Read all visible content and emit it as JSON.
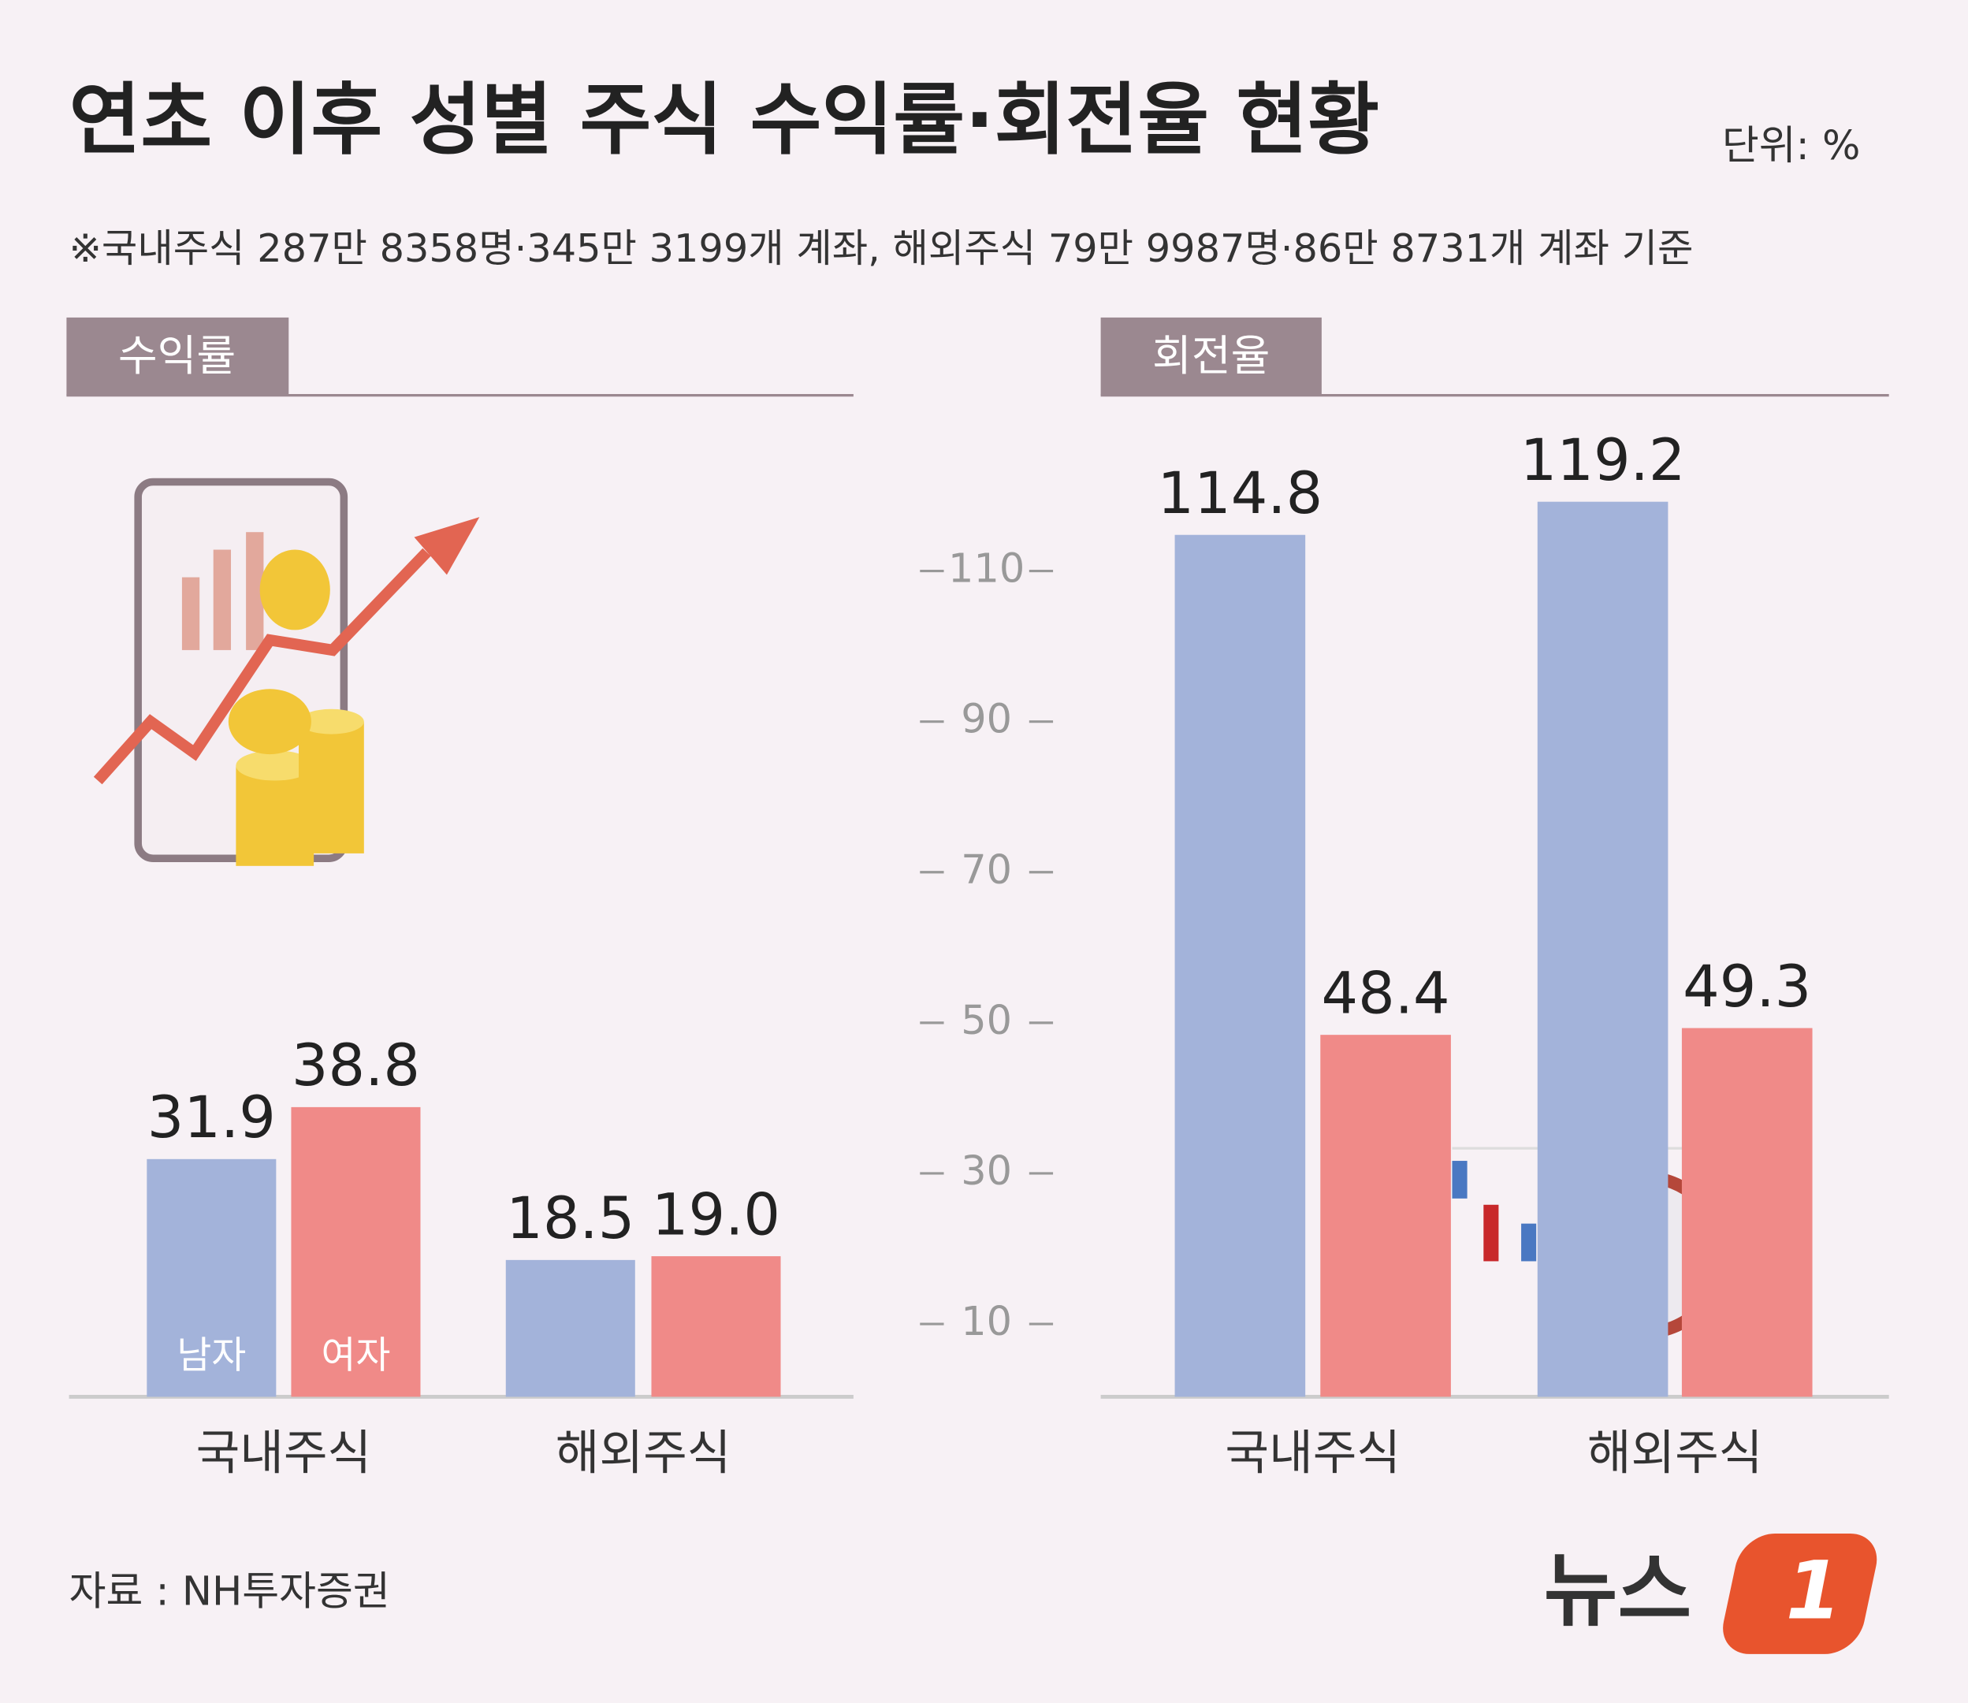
{
  "title": "연초 이후 성별 주식 수익률·회전율 현황",
  "unit": "단위: %",
  "note": "※국내주식 287만 8358명·345만 3199개 계좌, 해외주식 79만 9987명·86만 8731개 계좌 기준",
  "source": "자료 : NH투자증권",
  "logo": {
    "text": "뉴스",
    "mark": "1"
  },
  "chart_data": [
    {
      "type": "bar",
      "title": "수익률",
      "categories": [
        "국내주식",
        "해외주식"
      ],
      "series": [
        {
          "name": "남자",
          "color": "#a3b3da",
          "values": [
            31.9,
            18.5
          ]
        },
        {
          "name": "여자",
          "color": "#f08a88",
          "values": [
            38.8,
            19
          ],
          "value_labels": [
            "38.8",
            "19.0"
          ]
        }
      ]
    },
    {
      "type": "bar",
      "title": "회전율",
      "categories": [
        "국내주식",
        "해외주식"
      ],
      "series": [
        {
          "color": "#a3b3da",
          "values": [
            114.8,
            119.2
          ]
        },
        {
          "color": "#f08a88",
          "values": [
            48.4,
            49.3
          ]
        }
      ],
      "ylim": [
        0,
        120
      ],
      "yticks": [
        10,
        30,
        50,
        70,
        90,
        110
      ]
    }
  ]
}
